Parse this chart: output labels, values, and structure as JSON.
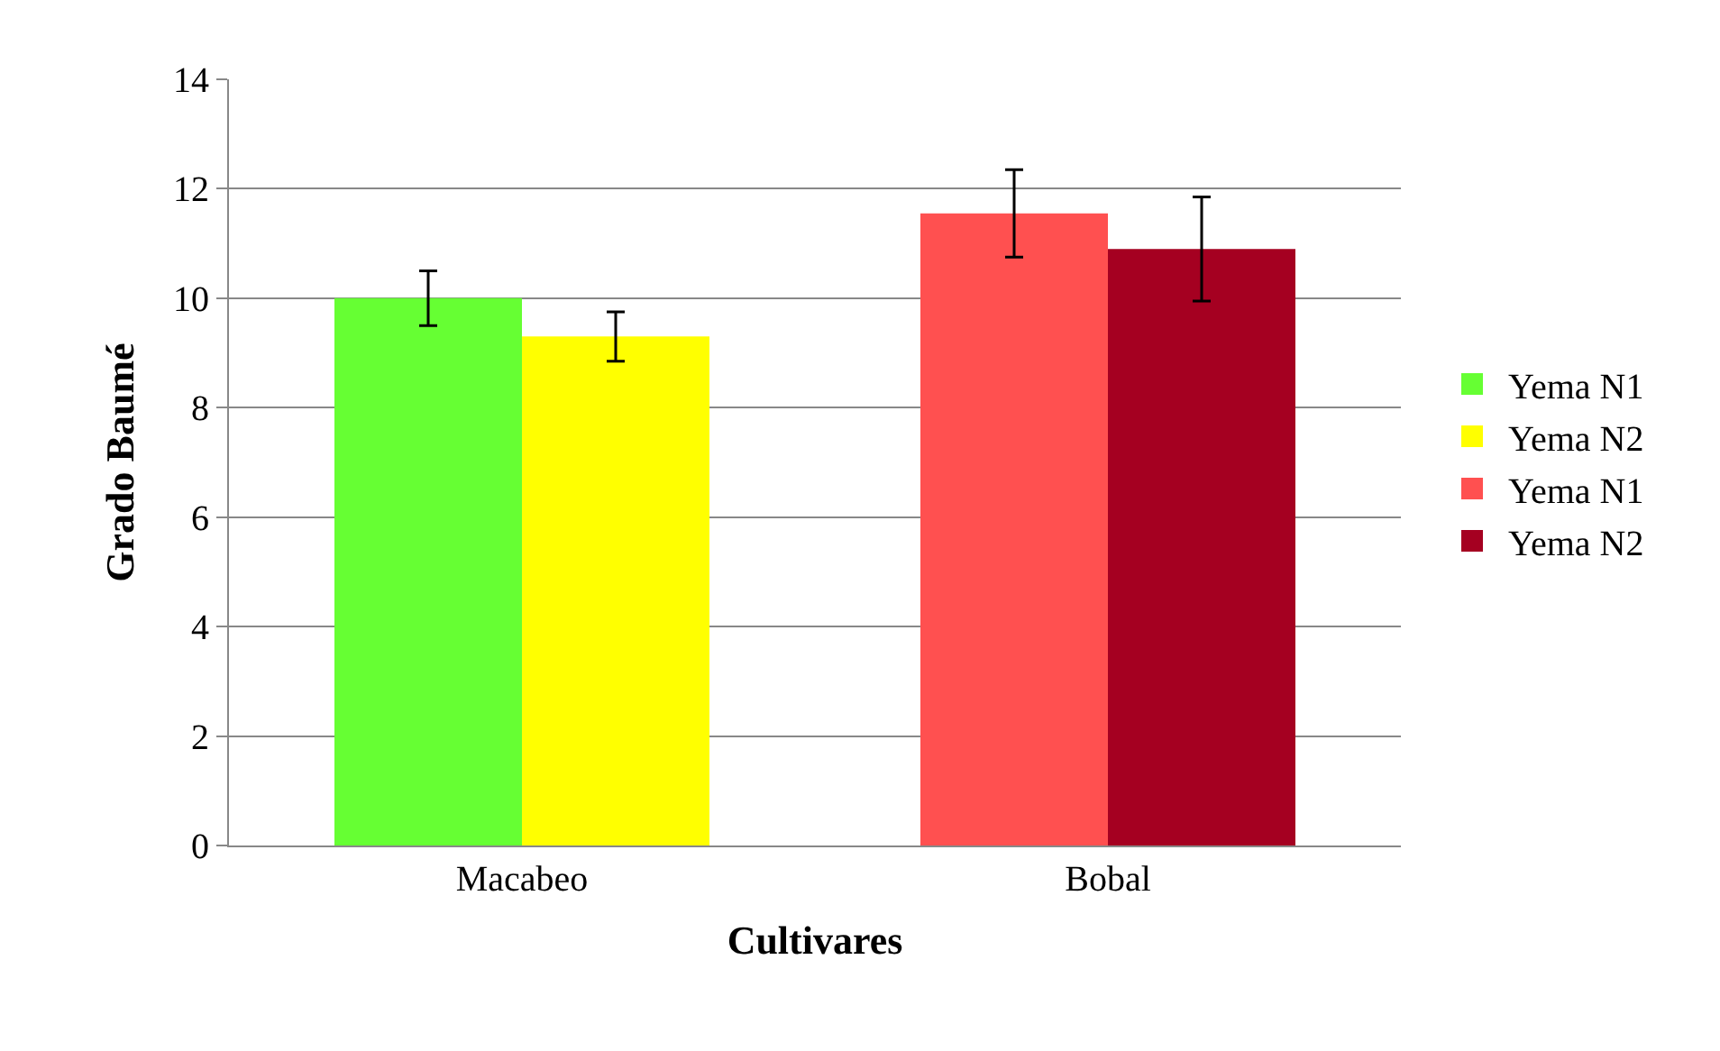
{
  "chart_data": {
    "type": "bar",
    "xlabel": "Cultivares",
    "ylabel": "Grado Baumé",
    "categories": [
      "Macabeo",
      "Bobal"
    ],
    "series": [
      {
        "name": "Yema N1",
        "color": "#66ff33",
        "values": [
          10.0,
          null
        ],
        "errors": [
          0.5,
          null
        ]
      },
      {
        "name": "Yema N2",
        "color": "#ffff00",
        "values": [
          9.3,
          null
        ],
        "errors": [
          0.45,
          null
        ]
      },
      {
        "name": "Yema N1",
        "color": "#ff5050",
        "values": [
          null,
          11.55
        ],
        "errors": [
          null,
          0.8
        ]
      },
      {
        "name": "Yema N2",
        "color": "#a50021",
        "values": [
          null,
          10.9
        ],
        "errors": [
          null,
          0.95
        ]
      }
    ],
    "ylim": [
      0,
      14
    ],
    "yticks": [
      0,
      2,
      4,
      6,
      8,
      10,
      12,
      14
    ],
    "grid": "y",
    "legend": "right"
  }
}
